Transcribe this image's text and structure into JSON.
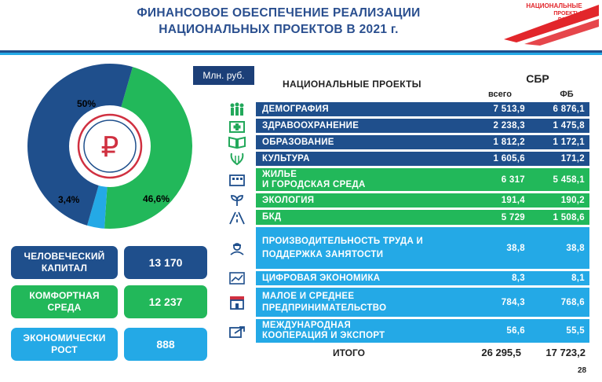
{
  "header": {
    "title_line1": "ФИНАНСОВОЕ ОБЕСПЕЧЕНИЕ РЕАЛИЗАЦИИ",
    "title_line2": "НАЦИОНАЛЬНЫХ ПРОЕКТОВ В 2021 г.",
    "logo_line1": "НАЦИОНАЛЬНЫЕ",
    "logo_line2": "ПРОЕКТЫ",
    "logo_line3": "РОССИИ"
  },
  "unit": "Млн. руб.",
  "pie": {
    "slices": [
      {
        "label": "50%",
        "value": 50.0,
        "color": "#1f4f8c"
      },
      {
        "label": "46,6%",
        "value": 46.6,
        "color": "#22b85a"
      },
      {
        "label": "3,4%",
        "value": 3.4,
        "color": "#24a9e6"
      }
    ],
    "center_icon": "ruble-icon"
  },
  "summary": [
    {
      "label_line1": "ЧЕЛОВЕЧЕСКИЙ",
      "label_line2": "КАПИТАЛ",
      "value": "13 170",
      "color": "#1f4f8c"
    },
    {
      "label_line1": "КОМФОРТНАЯ",
      "label_line2": "СРЕДА",
      "value": "12 237",
      "color": "#22b85a"
    },
    {
      "label_line1": "ЭКОНОМИЧЕСКИ",
      "label_line2": "РОСТ",
      "value": "888",
      "color": "#24a9e6"
    }
  ],
  "table": {
    "header_projects": "НАЦИОНАЛЬНЫЕ  ПРОЕКТЫ",
    "header_sbr": "СБР",
    "header_total": "всего",
    "header_fb": "ФБ",
    "rows": [
      {
        "name": "ДЕМОГРАФИЯ",
        "name2": "",
        "total": "7 513,9",
        "fb": "6 876,1",
        "group": "dark",
        "icon": "family-icon"
      },
      {
        "name": "ЗДРАВООХРАНЕНИЕ",
        "name2": "",
        "total": "2 238,3",
        "fb": "1 475,8",
        "group": "dark",
        "icon": "medical-icon"
      },
      {
        "name": "ОБРАЗОВАНИЕ",
        "name2": "",
        "total": "1 812,2",
        "fb": "1 172,1",
        "group": "dark",
        "icon": "book-icon"
      },
      {
        "name": "КУЛЬТУРА",
        "name2": "",
        "total": "1 605,6",
        "fb": "171,2",
        "group": "dark",
        "icon": "lyre-icon"
      },
      {
        "name": "ЖИЛЬЕ",
        "name2": "И ГОРОДСКАЯ СРЕДА",
        "total": "6 317",
        "fb": "5 458,1",
        "group": "green",
        "icon": "building-icon"
      },
      {
        "name": "ЭКОЛОГИЯ",
        "name2": "",
        "total": "191,4",
        "fb": "190,2",
        "group": "green",
        "icon": "plant-icon"
      },
      {
        "name": "БКД",
        "name2": "",
        "total": "5 729",
        "fb": "1 508,6",
        "group": "green",
        "icon": "road-icon"
      },
      {
        "name": "ПРОИЗВОДИТЕЛЬНОСТЬ  ТРУДА И",
        "name2": "ПОДДЕРЖКА  ЗАНЯТОСТИ",
        "total": "38,8",
        "fb": "38,8",
        "group": "light",
        "icon": "worker-icon"
      },
      {
        "name": "ЦИФРОВАЯ  ЭКОНОМИКА",
        "name2": "",
        "total": "8,3",
        "fb": "8,1",
        "group": "light",
        "icon": "digital-chart-icon"
      },
      {
        "name": "МАЛОЕ И СРЕДНЕЕ",
        "name2": "ПРЕДПРИНИМАТЕЛЬСТВО",
        "total": "784,3",
        "fb": "768,6",
        "group": "light",
        "icon": "shop-icon"
      },
      {
        "name": "МЕЖДУНАРОДНАЯ",
        "name2": "КООПЕРАЦИЯ  И  ЭКСПОРТ",
        "total": "56,6",
        "fb": "55,5",
        "group": "light",
        "icon": "export-icon"
      }
    ],
    "total_label": "ИТОГО",
    "total_sum": "26 295,5",
    "total_fb": "17 723,2"
  },
  "page_number": "28"
}
